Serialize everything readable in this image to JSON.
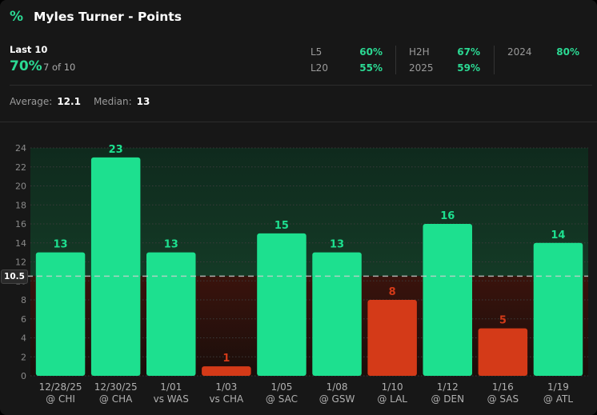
{
  "header": {
    "icon": "percent-icon",
    "title": "Myles Turner - Points"
  },
  "summary": {
    "label": "Last 10",
    "hit_rate": "70%",
    "hit_count": "7 of 10"
  },
  "stats": [
    {
      "label": "L5",
      "value": "60%"
    },
    {
      "label": "L20",
      "value": "55%"
    },
    {
      "label": "H2H",
      "value": "67%"
    },
    {
      "label": "2025",
      "value": "59%"
    },
    {
      "label": "2024",
      "value": "80%"
    }
  ],
  "averages": {
    "average_label": "Average:",
    "average": "12.1",
    "median_label": "Median:",
    "median": "13"
  },
  "line": {
    "label": "10.5",
    "value": 10.5
  },
  "colors": {
    "over": "#1de08f",
    "under": "#d43a18",
    "accent": "#2bd993"
  },
  "chart_data": {
    "type": "bar",
    "categories": [
      [
        "12/28/25",
        "@ CHI"
      ],
      [
        "12/30/25",
        "@ CHA"
      ],
      [
        "1/01",
        "vs WAS"
      ],
      [
        "1/03",
        "vs CHA"
      ],
      [
        "1/05",
        "@ SAC"
      ],
      [
        "1/08",
        "@ GSW"
      ],
      [
        "1/10",
        "@ LAL"
      ],
      [
        "1/12",
        "@ DEN"
      ],
      [
        "1/16",
        "@ SAS"
      ],
      [
        "1/19",
        "@ ATL"
      ]
    ],
    "values": [
      13,
      23,
      13,
      1,
      15,
      13,
      8,
      16,
      5,
      14
    ],
    "ylim": [
      0,
      24
    ],
    "yticks": [
      0,
      2,
      4,
      6,
      8,
      10,
      12,
      14,
      16,
      18,
      20,
      22,
      24
    ],
    "line": 10.5,
    "grid": true
  }
}
